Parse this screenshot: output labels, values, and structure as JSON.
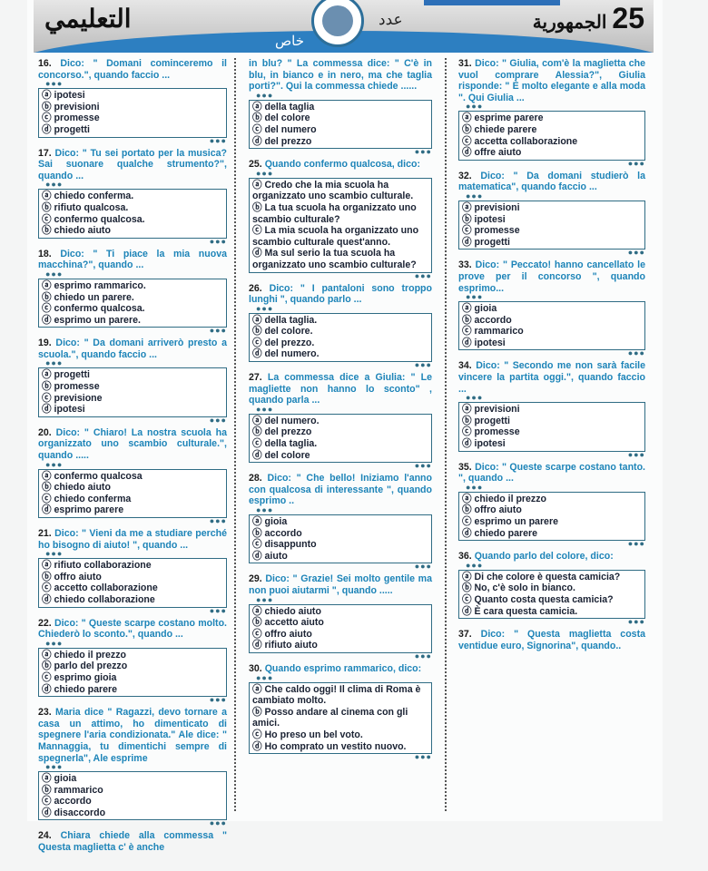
{
  "header": {
    "section": "التعليمي",
    "issue_label": "عدد",
    "special_label": "خاص",
    "newspaper": "الجمهورية",
    "page_number": "25",
    "emblem": "emblem-logo",
    "accent": "#2d7fc1"
  },
  "columns": [
    [
      {
        "num": "16.",
        "stem": "Dico: \" Domani cominceremo il concorso.\", quando faccio ...",
        "options": [
          "ⓐ ipotesi",
          "ⓑ previsioni",
          "ⓒ promesse",
          "ⓓ progetti"
        ]
      },
      {
        "num": "17.",
        "stem": "Dico: \" Tu sei portato per la musica? Sai suonare qualche strumento?\", quando ...",
        "options": [
          "ⓐ chiedo conferma.",
          "ⓑ rifiuto qualcosa.",
          "ⓒ confermo qualcosa.",
          "ⓑ chiedo aiuto"
        ]
      },
      {
        "num": "18.",
        "stem": "Dico: \" Ti piace la mia nuova macchina?\", quando ...",
        "options": [
          "ⓐ esprimo rammarico.",
          "ⓑ chiedo un parere.",
          "ⓒ confermo qualcosa.",
          "ⓓ esprimo un parere."
        ]
      },
      {
        "num": "19.",
        "stem": "Dico: \" Da domani arriverò presto a scuola.\", quando faccio ...",
        "options": [
          "ⓐ progetti",
          "ⓑ promesse",
          "ⓒ previsione",
          "ⓓ ipotesi"
        ]
      },
      {
        "num": "20.",
        "stem": "Dico: \" Chiaro! La nostra scuola ha organizzato uno scambio culturale.\", quando .....",
        "options": [
          "ⓐ confermo qualcosa",
          "ⓑ chiedo aiuto",
          "ⓒ chiedo conferma",
          "ⓓ esprimo parere"
        ]
      },
      {
        "num": "21.",
        "stem": "Dico: \" Vieni da me a studiare perché ho bisogno di aiuto! \", quando ...",
        "options": [
          "ⓐ rifiuto collaborazione",
          "ⓑ offro aiuto",
          "ⓒ accetto collaborazione",
          "ⓓ chiedo collaborazione"
        ]
      },
      {
        "num": "22.",
        "stem": "Dico: \" Queste scarpe costano molto. Chiederò lo sconto.\", quando ...",
        "options": [
          "ⓐ chiedo il prezzo",
          "ⓑ parlo del prezzo",
          "ⓒ esprimo gioia",
          "ⓓ chiedo parere"
        ]
      },
      {
        "num": "23.",
        "stem": "Maria dice \" Ragazzi, devo tornare a casa un attimo, ho dimenticato di spegnere l'aria condizionata.\" Ale dice: \" Mannaggia, tu dimentichi sempre di spegnerla\", Ale esprime",
        "options": [
          "ⓐ gioia",
          "ⓑ rammarico",
          "ⓒ accordo",
          "ⓓ disaccordo"
        ]
      },
      {
        "num": "24.",
        "stem": "Chiara chiede alla commessa \" Questa maglietta c' è anche",
        "options": []
      }
    ],
    [
      {
        "num": "",
        "stem": "in blu? \" La commessa dice: \" C'è in blu, in bianco e in nero, ma che taglia porti?\". Qui la commessa chiede ......",
        "options": [
          "ⓐ della taglia",
          "ⓑ del colore",
          "ⓒ del numero",
          "ⓓ del prezzo"
        ]
      },
      {
        "num": "25.",
        "stem": "Quando confermo qualcosa, dico:",
        "options": [
          "ⓐ Credo che la mia scuola ha organizzato uno scambio culturale.",
          "ⓑ La tua scuola ha organizzato uno scambio culturale?",
          "ⓒ La mia scuola ha organizzato uno scambio culturale quest'anno.",
          "ⓓ Ma sul serio la tua scuola ha organizzato uno scambio culturale?"
        ]
      },
      {
        "num": "26.",
        "stem": "Dico: \" I pantaloni sono troppo lunghi \", quando parlo ...",
        "options": [
          "ⓐ della taglia.",
          "ⓑ del colore.",
          "ⓒ del prezzo.",
          "ⓓ del numero."
        ]
      },
      {
        "num": "27.",
        "stem": "La commessa dice a Giulia: \" Le magliette non hanno lo sconto\" , quando parla ...",
        "options": [
          "ⓐ del numero.",
          "ⓑ del prezzo",
          "ⓒ della taglia.",
          "ⓓ del colore"
        ]
      },
      {
        "num": "28.",
        "stem": "Dico: \" Che bello! Iniziamo l'anno con qualcosa di interessante \", quando esprimo ..",
        "options": [
          "ⓐ gioia",
          "ⓑ accordo",
          "ⓒ disappunto",
          "ⓓ aiuto"
        ]
      },
      {
        "num": "29.",
        "stem": "Dico: \" Grazie! Sei molto gentile ma non puoi aiutarmi \", quando .....",
        "options": [
          "ⓐ chiedo aiuto",
          "ⓑ accetto aiuto",
          "ⓒ offro aiuto",
          "ⓓ rifiuto aiuto"
        ]
      },
      {
        "num": "30.",
        "stem": "Quando esprimo rammarico, dico:",
        "options": [
          "ⓐ Che caldo oggi! Il clima di Roma è cambiato molto.",
          "ⓑ Posso andare al cinema con gli amici.",
          "ⓒ Ho preso un bel voto.",
          "ⓓ Ho comprato un vestito nuovo."
        ]
      }
    ],
    [
      {
        "num": "31.",
        "stem": "Dico: \" Giulia, com'è la maglietta che vuol comprare Alessia?\", Giulia risponde: \" È molto elegante e alla moda \". Qui Giulia ...",
        "options": [
          "ⓐ esprime parere",
          "ⓑ chiede parere",
          "ⓒ accetta collaborazione",
          "ⓓ offre aiuto"
        ]
      },
      {
        "num": "32.",
        "stem": "Dico: \" Da domani studierò la matematica\", quando faccio ...",
        "options": [
          "ⓐ previsioni",
          "ⓑ ipotesi",
          "ⓒ promesse",
          "ⓓ progetti"
        ]
      },
      {
        "num": "33.",
        "stem": "Dico: \" Peccato! hanno cancellato le prove per il concorso \", quando esprimo...",
        "options": [
          "ⓐ gioia",
          "ⓑ accordo",
          "ⓒ rammarico",
          "ⓓ ipotesi"
        ]
      },
      {
        "num": "34.",
        "stem": "Dico: \" Secondo me non sarà facile vincere la partita oggi.\", quando faccio ...",
        "options": [
          "ⓐ previsioni",
          "ⓑ progetti",
          "ⓒ promesse",
          "ⓓ ipotesi"
        ]
      },
      {
        "num": "35.",
        "stem": "Dico: \" Queste scarpe costano tanto. \", quando ...",
        "options": [
          "ⓐ chiedo il prezzo",
          "ⓑ offro aiuto",
          "ⓒ esprimo un parere",
          "ⓓ chiedo parere"
        ]
      },
      {
        "num": "36.",
        "stem": "Quando parlo del colore, dico:",
        "options": [
          "ⓐ Di che colore è questa camicia?",
          "ⓑ No, c'è solo in bianco.",
          "ⓒ Quanto costa questa camicia?",
          "ⓓ È cara questa camicia."
        ]
      },
      {
        "num": "37.",
        "stem": "Dico: \" Questa maglietta costa ventidue euro, Signorina\", quando..",
        "options": []
      }
    ]
  ]
}
